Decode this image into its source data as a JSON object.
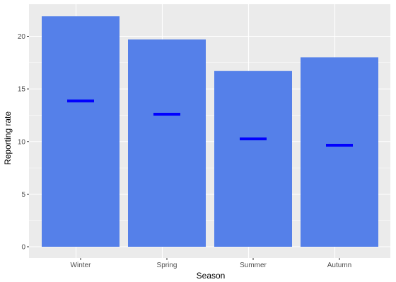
{
  "chart_data": {
    "type": "bar",
    "categories": [
      "Winter",
      "Spring",
      "Summer",
      "Autumn"
    ],
    "series": [
      {
        "values": [
          21.9,
          19.7,
          16.7,
          18.0
        ]
      }
    ],
    "markers": [
      13.85,
      12.6,
      10.25,
      9.65
    ],
    "xlabel": "Season",
    "ylabel": "Reporting rate",
    "ylim": [
      0,
      22
    ],
    "yticks": [
      0,
      5,
      10,
      15,
      20
    ],
    "grid": true,
    "legend": "none",
    "colors": {
      "bar": "#5580E9",
      "marker": "#0000FF",
      "panel": "#EBEBEB",
      "grid": "#FFFFFF"
    }
  }
}
